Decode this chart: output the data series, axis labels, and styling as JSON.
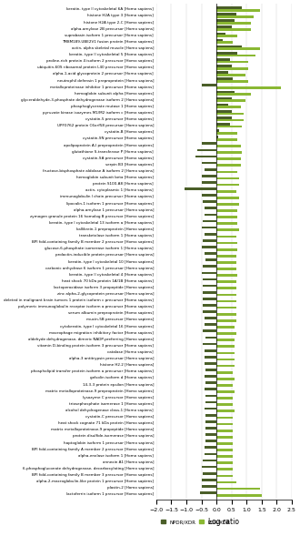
{
  "proteins": [
    "keratin, type II cytoskeletal 6A [Homo sapiens]",
    "histone H2A type 3 [Homo sapiens]",
    "histone H2A type 2-C [Homo sapiens]",
    "alpha-amylase 2B precursor [Homo sapiens]",
    "suprabasin isoform 1 precursor [Homo sapiens]",
    "TM8M189-UBE2V1 fusion protein [Homo sapiens]",
    "actin, alpha skeletal muscle [Homo sapiens]",
    "keratin, type II cytoskeletal 5 [Homo sapiens]",
    "proline-rich protein 4 isoform 2 precursor [Homo sapiens]",
    "ubiquitin-60S ribosomal protein L40 precursor [Homo sapiens]",
    "alpha-1-acid glycoprotein 2 precursor [Homo sapiens]",
    "neutrophil defensin 1 preproprotein [Homo sapiens]",
    "metalloproteinase inhibitor 1 precursor [Homo sapiens]",
    "hemoglobin subunit alpha [Homo sapiens]",
    "glyceraldehyde-3-phosphate dehydrogenase isoform 2 [Homo sapiens]",
    "phosphoglycerate mutase 1 [Homo sapiens]",
    "pyruvate kinase isozymes M1/M2 isoform c [Homo sapiens]",
    "cystatin-5 precursor [Homo sapiens]",
    "UPF0762 protein C6orf58 precursor [Homo sapiens]",
    "cystatin-B [Homo sapiens]",
    "cystatin-SN precursor [Homo sapiens]",
    "apolipoprotein A-I preproprotein [Homo sapiens]",
    "glutathione S-transferase P [Homo sapiens]",
    "cystatin-SA precursor [Homo sapiens]",
    "serpin B3 [Homo sapiens]",
    "fructose-bisphosphate aldolase A isoform 2 [Homo sapiens]",
    "hemoglobin subunit beta [Homo sapiens]",
    "protein S100-A8 [Homo sapiens]",
    "actin, cytoplasmic 1 [Homo sapiens]",
    "immunoglobulin I chain precursor [Homo sapiens]",
    "lipocalin-1 isoform 1 precursor [Homo sapiens]",
    "alpha-amylase 1 precursor [Homo sapiens]",
    "zymogen granule protein 16 homolog B precursor [Homo sapiens]",
    "keratin, type I cytoskeletal 13 isoform a [Homo sapiens]",
    "kallikrein-1 preproprotein [Homo sapiens]",
    "transketolase isoform 1 [Homo sapiens]",
    "BPI fold-containing family B member 2 precursor [Homo sapiens]",
    "glucose-6-phosphate isomerase isoform 1 [Homo sapiens]",
    "prolactin-inducible protein precursor [Homo sapiens]",
    "keratin, type I cytoskeletal 10 [Homo sapiens]",
    "carbonic anhydrase 6 isoform 1 precursor [Homo sapiens]",
    "keratin, type II cytoskeletal 4 [Homo sapiens]",
    "heat shock 70 kDa protein 1A/1B [Homo sapiens]",
    "lactoperoxidase isoform 3 propeptide [Homo sapiens]",
    "zinc alpha-2-glycoprotein precursor [Homo sapiens]",
    "deleted in malignant brain tumors 1 protein isoform c precursor [Homo sapiens]",
    "polymeric immunoglobulin receptor isoform a precursor [Homo sapiens]",
    "serum albumin preproprotein [Homo sapiens]",
    "mucin-5B precursor [Homo sapiens]",
    "cytokeratin, type I cytoskeletal 16 [Homo sapiens]",
    "macrophage migration inhibitory factor [Homo sapiens]",
    "aldehyde dehydrogenase, dimeric NADP-preferring [Homo sapiens]",
    "vitamin D-binding protein isoform 3 precursor [Homo sapiens]",
    "catalase [Homo sapiens]",
    "alpha-3 antitrypsin precursor [Homo sapiens]",
    "histone H2.2 [Homo sapiens]",
    "phospholipid transfer protein isoform a precursor [Homo sapiens]",
    "gelsolin isoform d [Homo sapiens]",
    "14-3-3 protein epsilon [Homo sapiens]",
    "matrix metalloproteinase-9 preproprotein [Homo sapiens]",
    "lysozyme C precursor [Homo sapiens]",
    "triosephosphate isomerase 1 [Homo sapiens]",
    "alcohol dehydrogenase class-1 [Homo sapiens]",
    "cystatin-C precursor [Homo sapiens]",
    "heat shock cognate 71 kDa protein [Homo sapiens]",
    "matrix metalloproteinase-9 propeptide [Homo sapiens]",
    "protein disulfide-isomerase [Homo sapiens]",
    "haptoglobin isoform 1 precursor [Homo sapiens]",
    "BPI fold-containing family A member 2 precursor [Homo sapiens]",
    "alpha-enolase isoform 1 [Homo sapiens]",
    "annexin A1 [Homo sapiens]",
    "6-phosphogluconate dehydrogenase, decarboxylating [Homo sapiens]",
    "BPI fold-containing family B member 3 precursor [Homo sapiens]",
    "alpha-2-macroglobulin-like protein 1 precursor [Homo sapiens]",
    "plastin-2 [Homo sapiens]",
    "lactoferrin isoform 1 precursor [Homo sapiens]"
  ],
  "npdr_xdr": [
    0.85,
    0.65,
    0.6,
    0.5,
    0.3,
    0.2,
    0.85,
    0.7,
    0.45,
    0.5,
    0.4,
    0.55,
    -0.5,
    0.6,
    0.5,
    0.4,
    0.5,
    0.5,
    0.45,
    0.1,
    0.05,
    -0.5,
    -0.65,
    -0.7,
    -0.5,
    -0.4,
    -0.5,
    -0.5,
    -1.05,
    -0.5,
    -0.45,
    -0.4,
    -0.4,
    -0.45,
    -0.5,
    -0.4,
    -0.45,
    -0.5,
    -0.4,
    -0.35,
    -0.45,
    -0.5,
    -0.45,
    -0.45,
    -0.45,
    -0.45,
    -0.45,
    -0.45,
    -0.4,
    -0.4,
    -0.45,
    -0.35,
    -0.45,
    -0.4,
    -0.4,
    -0.4,
    -0.35,
    -0.4,
    -0.35,
    -0.4,
    -0.35,
    -0.35,
    -0.4,
    -0.35,
    -0.35,
    -0.35,
    -0.35,
    -0.35,
    -0.4,
    -0.4,
    -0.45,
    -0.5,
    -0.45,
    -0.5,
    -0.5,
    -0.55
  ],
  "pdr_xdr": [
    1.45,
    1.25,
    1.15,
    1.15,
    0.7,
    0.55,
    1.45,
    1.3,
    1.05,
    1.05,
    0.95,
    1.05,
    2.15,
    1.15,
    0.95,
    0.8,
    0.9,
    0.9,
    0.85,
    0.7,
    0.7,
    0.8,
    0.85,
    0.8,
    0.8,
    0.7,
    0.75,
    0.75,
    0.65,
    0.75,
    0.75,
    0.7,
    0.7,
    0.7,
    0.75,
    0.65,
    0.7,
    0.7,
    0.65,
    0.65,
    0.65,
    0.7,
    0.65,
    0.65,
    0.65,
    0.65,
    0.65,
    0.65,
    0.65,
    0.6,
    0.65,
    0.6,
    0.6,
    0.6,
    0.6,
    0.6,
    0.55,
    0.6,
    0.55,
    0.6,
    0.55,
    0.55,
    0.6,
    0.55,
    0.55,
    0.55,
    0.55,
    0.55,
    0.55,
    0.55,
    0.55,
    0.55,
    0.55,
    0.65,
    1.45,
    1.5
  ],
  "color_npdr": "#4a5e28",
  "color_pdr": "#8ab833",
  "bar_height": 0.38,
  "xlim": [
    -2.0,
    2.5
  ],
  "xticks": [
    -2.0,
    -1.5,
    -1.0,
    -0.5,
    0.0,
    0.5,
    1.0,
    1.5,
    2.0,
    2.5
  ],
  "xlabel": "Log ratio",
  "legend_labels": [
    "NPDR/XDR",
    "PDR/XDR"
  ]
}
